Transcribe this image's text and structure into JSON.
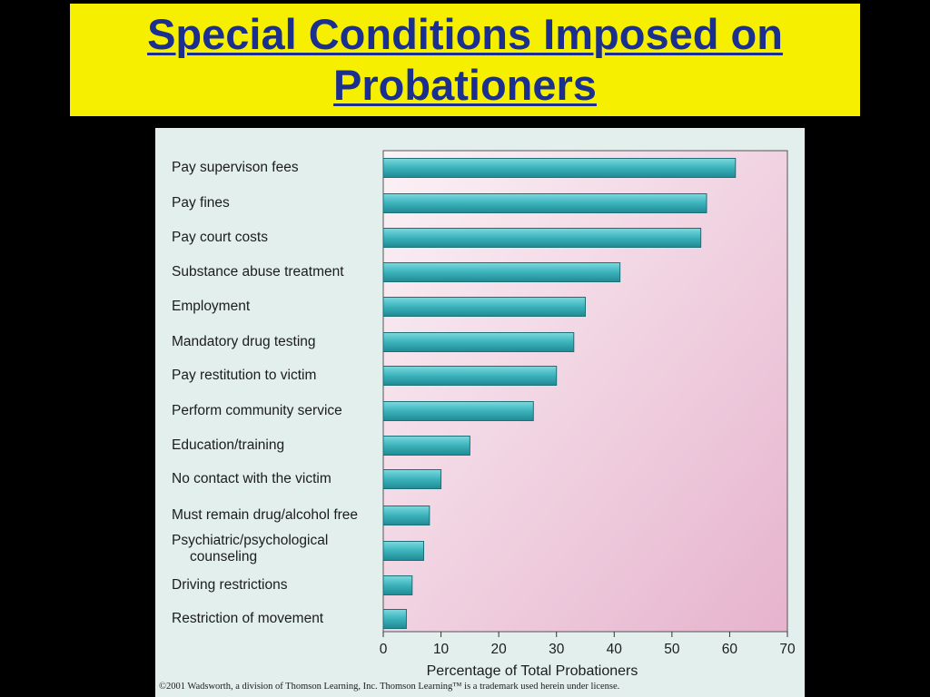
{
  "slide": {
    "title_line1": "Special Conditions Imposed on",
    "title_line2": "Probationers",
    "copyright": "©2001 Wadsworth, a division of Thomson Learning, Inc.  Thomson Learning™ is a trademark used herein under license."
  },
  "colors": {
    "background": "#000000",
    "title_box": "#f6f000",
    "title_text": "#1b2f8f",
    "panel": "#e2efed",
    "bar": "#3fb6bf",
    "plot_gradient_start": "#fbf2f6",
    "plot_gradient_end": "#e6b3cd"
  },
  "chart_data": {
    "type": "bar",
    "orientation": "horizontal",
    "categories": [
      "Pay supervison fees",
      "Pay fines",
      "Pay court costs",
      "Substance abuse treatment",
      "Employment",
      "Mandatory drug testing",
      "Pay restitution to victim",
      "Perform community service",
      "Education/training",
      "No contact with the victim",
      "Must remain drug/alcohol free",
      "Psychiatric/psychological counseling",
      "Driving restrictions",
      "Restriction of movement"
    ],
    "category_lines": [
      [
        "Pay supervison fees"
      ],
      [
        "Pay fines"
      ],
      [
        "Pay court costs"
      ],
      [
        "Substance abuse treatment"
      ],
      [
        "Employment"
      ],
      [
        "Mandatory drug testing"
      ],
      [
        "Pay restitution to victim"
      ],
      [
        "Perform community service"
      ],
      [
        "Education/training"
      ],
      [
        "No contact with the victim"
      ],
      [
        "Must remain drug/alcohol free"
      ],
      [
        "Psychiatric/psychological",
        "counseling"
      ],
      [
        "Driving restrictions"
      ],
      [
        "Restriction of movement"
      ]
    ],
    "values": [
      61,
      56,
      55,
      41,
      35,
      33,
      30,
      26,
      15,
      10,
      8,
      7,
      5,
      4
    ],
    "xlabel": "Percentage of Total Probationers",
    "ylabel": "",
    "xlim": [
      0,
      70
    ],
    "xticks": [
      0,
      10,
      20,
      30,
      40,
      50,
      60,
      70
    ],
    "grid": false,
    "legend": "none"
  }
}
